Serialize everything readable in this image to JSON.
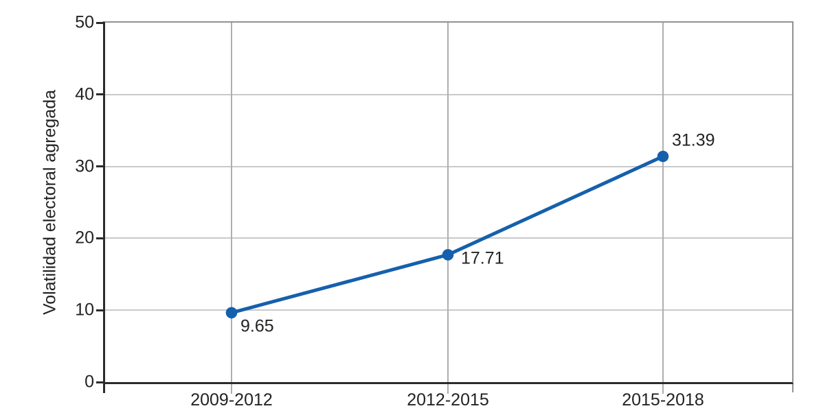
{
  "chart_data": {
    "type": "line",
    "title": "",
    "xlabel": "",
    "ylabel": "Volatilidad electoral agregada",
    "categories": [
      "2009-2012",
      "2012-2015",
      "2015-2018"
    ],
    "series": [
      {
        "name": "Volatilidad electoral agregada",
        "values": [
          9.65,
          17.71,
          31.39
        ],
        "point_labels": [
          "9.65",
          "17.71",
          "31.39"
        ],
        "label_placements": [
          "below-right",
          "right",
          "above-right"
        ]
      }
    ],
    "ylim": [
      0,
      50
    ],
    "yticks": [
      0,
      10,
      20,
      30,
      40,
      50
    ],
    "grid": true,
    "legend": "none"
  },
  "colors": {
    "line": "#1560AC",
    "marker": "#1560AC",
    "grid_horizontal": "#c9c9c9",
    "grid_vertical": "#aeaeae",
    "frame": "#929292",
    "axis": "#2b2b2b",
    "text": "#232323",
    "background": "#ffffff"
  }
}
